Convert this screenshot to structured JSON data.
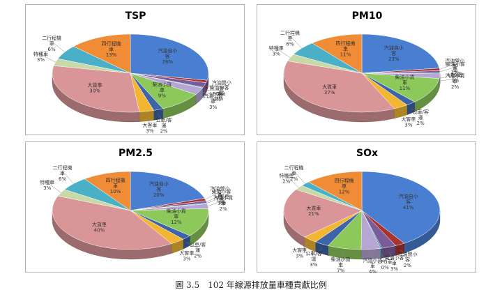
{
  "caption": "圖 3.5　102 年線源排放量車種貢獻比例",
  "colors": {
    "汽油自小客": "#4a7ed1",
    "汽油營小客": "#a8342f",
    "柴油小客車": "#7b5c9a",
    "LPG車": "#2e8ea3",
    "汽油小貨車": "#b6a6d4",
    "柴油小貨車": "#8dc85a",
    "公車/客運": "#3d64a8",
    "大客車": "#f2b632",
    "大貨車": "#d99597",
    "特種車": "#c8d9a8",
    "二行程機車": "#4ab0c8",
    "四行程機車": "#f08c35"
  },
  "chart_data": [
    {
      "type": "pie",
      "title": "TSP",
      "slices": [
        {
          "name": "汽油自小客",
          "value": 28,
          "label": "28%"
        },
        {
          "name": "汽油營小客",
          "value": 1,
          "label": "1%"
        },
        {
          "name": "柴油小客車",
          "value": 2,
          "label": "2%"
        },
        {
          "name": "LPG車",
          "value": 0.3,
          "label": "0%"
        },
        {
          "name": "汽油小貨車",
          "value": 3,
          "label": "3%"
        },
        {
          "name": "柴油小貨車",
          "value": 9,
          "label": "9%"
        },
        {
          "name": "公車/客運",
          "value": 2,
          "label": "2%"
        },
        {
          "name": "大客車",
          "value": 3,
          "label": "3%"
        },
        {
          "name": "大貨車",
          "value": 30,
          "label": "30%"
        },
        {
          "name": "特種車",
          "value": 3,
          "label": "3%"
        },
        {
          "name": "二行程機車",
          "value": 6,
          "label": "6%"
        },
        {
          "name": "四行程機車",
          "value": 13,
          "label": "13%"
        }
      ]
    },
    {
      "type": "pie",
      "title": "PM10",
      "slices": [
        {
          "name": "汽油自小客",
          "value": 23,
          "label": "23%"
        },
        {
          "name": "汽油營小客",
          "value": 1,
          "label": "1%"
        },
        {
          "name": "柴油小客車",
          "value": 1,
          "label": "1%"
        },
        {
          "name": "LPG車",
          "value": 0.3,
          "label": "0%"
        },
        {
          "name": "汽油小貨車",
          "value": 2,
          "label": "2%"
        },
        {
          "name": "柴油小貨車",
          "value": 11,
          "label": "11%"
        },
        {
          "name": "公車/客運",
          "value": 2,
          "label": "2%"
        },
        {
          "name": "大客車",
          "value": 3,
          "label": "3%"
        },
        {
          "name": "大貨車",
          "value": 37,
          "label": "37%"
        },
        {
          "name": "特種車",
          "value": 3,
          "label": "3%"
        },
        {
          "name": "二行程機車",
          "value": 6,
          "label": "6%"
        },
        {
          "name": "四行程機車",
          "value": 11,
          "label": "11%"
        }
      ]
    },
    {
      "type": "pie",
      "title": "PM2.5",
      "slices": [
        {
          "name": "汽油自小客",
          "value": 20,
          "label": "20%"
        },
        {
          "name": "汽油營小客",
          "value": 1,
          "label": "1%"
        },
        {
          "name": "柴油小客車",
          "value": 1,
          "label": "1%"
        },
        {
          "name": "LPG車",
          "value": 0.3,
          "label": "0%"
        },
        {
          "name": "汽油小貨車",
          "value": 2,
          "label": "2%"
        },
        {
          "name": "柴油小貨車",
          "value": 12,
          "label": "12%"
        },
        {
          "name": "公車/客運",
          "value": 2,
          "label": "2%"
        },
        {
          "name": "大客車",
          "value": 3,
          "label": "3%"
        },
        {
          "name": "大貨車",
          "value": 40,
          "label": "40%"
        },
        {
          "name": "特種車",
          "value": 3,
          "label": "3%"
        },
        {
          "name": "二行程機車",
          "value": 6,
          "label": "6%"
        },
        {
          "name": "四行程機車",
          "value": 10,
          "label": "10%"
        }
      ]
    },
    {
      "type": "pie",
      "title": "SOx",
      "slices": [
        {
          "name": "汽油自小客",
          "value": 41,
          "label": "41%"
        },
        {
          "name": "汽油營小客",
          "value": 2,
          "label": "2%"
        },
        {
          "name": "柴油小客車",
          "value": 3,
          "label": "3%"
        },
        {
          "name": "LPG車",
          "value": 0.3,
          "label": "0%"
        },
        {
          "name": "汽油小貨車",
          "value": 4,
          "label": "4%"
        },
        {
          "name": "柴油小貨車",
          "value": 7,
          "label": "7%"
        },
        {
          "name": "公車/客運",
          "value": 3,
          "label": "3%"
        },
        {
          "name": "大客車",
          "value": 3,
          "label": "3%"
        },
        {
          "name": "大貨車",
          "value": 21,
          "label": "21%"
        },
        {
          "name": "特種車",
          "value": 2,
          "label": "2%"
        },
        {
          "name": "二行程機車",
          "value": 2,
          "label": "2%"
        },
        {
          "name": "四行程機車",
          "value": 12,
          "label": "12%"
        }
      ]
    }
  ]
}
